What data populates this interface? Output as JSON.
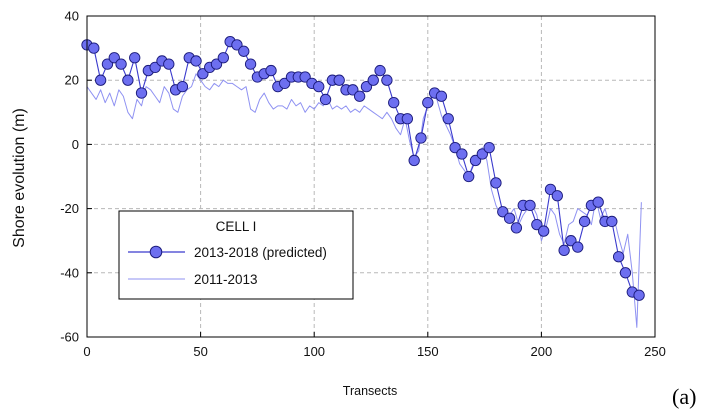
{
  "panel_label": "(a)",
  "colors": {
    "predicted": "#3a3acd",
    "marker_fill": "#6d6ff0",
    "observed": "#8f92f2",
    "frame": "#000000",
    "grid": "#b8b8b8"
  },
  "chart_data": {
    "type": "line",
    "xlabel": "Transects",
    "ylabel": "Shore evolution (m)",
    "xlim": [
      0,
      250
    ],
    "ylim": [
      -60,
      40
    ],
    "xticks": [
      0,
      50,
      100,
      150,
      200,
      250
    ],
    "yticks": [
      40,
      20,
      0,
      -20,
      -40,
      -60
    ],
    "grid": "dashed at every tick",
    "legend": {
      "title": "CELL I",
      "placement": "lower-left"
    },
    "series": [
      {
        "name": "2013-2018 (predicted)",
        "style": "line-with-markers",
        "x": [
          0,
          3,
          6,
          9,
          12,
          15,
          18,
          21,
          24,
          27,
          30,
          33,
          36,
          39,
          42,
          45,
          48,
          51,
          54,
          57,
          60,
          63,
          66,
          69,
          72,
          75,
          78,
          81,
          84,
          87,
          90,
          93,
          96,
          99,
          102,
          105,
          108,
          111,
          114,
          117,
          120,
          123,
          126,
          129,
          132,
          135,
          138,
          141,
          144,
          147,
          150,
          153,
          156,
          159,
          162,
          165,
          168,
          171,
          174,
          177,
          180,
          183,
          186,
          189,
          192,
          195,
          198,
          201,
          204,
          207,
          210,
          213,
          216,
          219,
          222,
          225,
          228,
          231,
          234,
          237,
          240,
          243
        ],
        "y": [
          31,
          30,
          20,
          25,
          27,
          25,
          20,
          27,
          16,
          23,
          24,
          26,
          25,
          17,
          18,
          27,
          26,
          22,
          24,
          25,
          27,
          32,
          31,
          29,
          25,
          21,
          22,
          23,
          18,
          19,
          21,
          21,
          21,
          19,
          18,
          14,
          20,
          20,
          17,
          17,
          15,
          18,
          20,
          23,
          20,
          13,
          8,
          8,
          -5,
          2,
          13,
          16,
          15,
          8,
          -1,
          -3,
          -10,
          -5,
          -3,
          -1,
          -12,
          -21,
          -23,
          -26,
          -19,
          -19,
          -25,
          -27,
          -14,
          -16,
          -33,
          -30,
          -32,
          -24,
          -19,
          -18,
          -24,
          -24,
          -35,
          -40,
          -46,
          -47
        ]
      },
      {
        "name": "2011-2013",
        "style": "line",
        "x": [
          0,
          2,
          4,
          6,
          8,
          10,
          12,
          14,
          16,
          18,
          20,
          22,
          24,
          26,
          28,
          30,
          32,
          34,
          36,
          38,
          40,
          42,
          44,
          46,
          48,
          50,
          52,
          54,
          56,
          58,
          60,
          62,
          64,
          66,
          68,
          70,
          72,
          74,
          76,
          78,
          80,
          82,
          84,
          86,
          88,
          90,
          92,
          94,
          96,
          98,
          100,
          102,
          104,
          106,
          108,
          110,
          112,
          114,
          116,
          118,
          120,
          122,
          124,
          126,
          128,
          130,
          132,
          134,
          136,
          138,
          140,
          142,
          144,
          146,
          148,
          150,
          152,
          154,
          156,
          158,
          160,
          162,
          164,
          166,
          168,
          170,
          172,
          174,
          176,
          178,
          180,
          182,
          184,
          186,
          188,
          190,
          192,
          194,
          196,
          198,
          200,
          202,
          204,
          206,
          208,
          210,
          212,
          214,
          216,
          218,
          220,
          222,
          224,
          226,
          228,
          230,
          232,
          234,
          236,
          238,
          240,
          242,
          244
        ],
        "y": [
          18,
          16,
          14,
          17,
          13,
          16,
          12,
          17,
          15,
          10,
          8,
          14,
          12,
          18,
          17,
          15,
          13,
          18,
          16,
          11,
          10,
          15,
          17,
          18,
          22,
          20,
          18,
          17,
          19,
          18,
          20,
          19,
          19,
          18,
          17,
          18,
          11,
          10,
          14,
          16,
          13,
          11,
          12,
          12,
          11,
          14,
          12,
          13,
          10,
          12,
          11,
          13,
          12,
          14,
          11,
          12,
          11,
          12,
          10,
          11,
          10,
          12,
          11,
          10,
          9,
          8,
          10,
          8,
          5,
          3,
          8,
          1,
          -4,
          -2,
          8,
          12,
          15,
          14,
          9,
          6,
          3,
          -1,
          -6,
          -8,
          -10,
          -6,
          -3,
          -1,
          -5,
          -14,
          -19,
          -22,
          -21,
          -22,
          -20,
          -25,
          -22,
          -20,
          -19,
          -22,
          -30,
          -26,
          -20,
          -22,
          -28,
          -31,
          -25,
          -24,
          -20,
          -21,
          -22,
          -25,
          -17,
          -23,
          -20,
          -25,
          -23,
          -29,
          -34,
          -28,
          -40,
          -57,
          -18
        ]
      }
    ]
  }
}
